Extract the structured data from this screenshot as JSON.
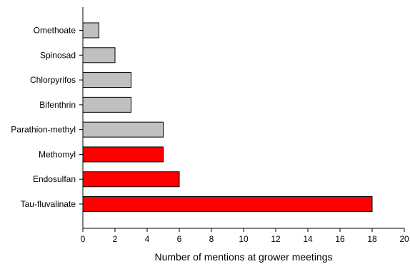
{
  "chart_data": {
    "type": "bar",
    "orientation": "horizontal",
    "categories": [
      "Omethoate",
      "Spinosad",
      "Chlorpyrifos",
      "Bifenthrin",
      "Parathion-methyl",
      "Methomyl",
      "Endosulfan",
      "Tau-fluvalinate"
    ],
    "values": [
      1,
      2,
      3,
      3,
      5,
      5,
      6,
      18
    ],
    "bar_colors": [
      "#c0c0c0",
      "#c0c0c0",
      "#c0c0c0",
      "#c0c0c0",
      "#c0c0c0",
      "#ff0000",
      "#ff0000",
      "#ff0000"
    ],
    "title": "",
    "xlabel": "Number of mentions at grower meetings",
    "ylabel": "",
    "xlim": [
      0,
      20
    ],
    "xticks": [
      0,
      2,
      4,
      6,
      8,
      10,
      12,
      14,
      16,
      18,
      20
    ],
    "grid": false,
    "legend": "none"
  }
}
